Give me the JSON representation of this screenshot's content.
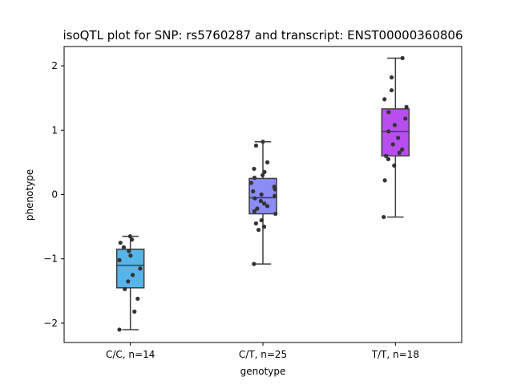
{
  "chart_data": {
    "type": "box",
    "title": "isoQTL plot for SNP: rs5760287 and transcript: ENST00000360806",
    "xlabel": "genotype",
    "ylabel": "phenotype",
    "ylim": [
      -2.3,
      2.3
    ],
    "yticks": [
      -2,
      -1,
      0,
      1,
      2
    ],
    "ytick_labels": [
      "−2",
      "−1",
      "0",
      "1",
      "2"
    ],
    "categories": [
      "C/C, n=14",
      "C/T, n=25",
      "T/T, n=18"
    ],
    "boxes": [
      {
        "category": "C/C, n=14",
        "color": "#56b4e9",
        "whisker_low": -2.1,
        "q1": -1.45,
        "median": -1.1,
        "q3": -0.85,
        "whisker_high": -0.65
      },
      {
        "category": "C/T, n=25",
        "color": "#8c8cf7",
        "whisker_low": -1.08,
        "q1": -0.3,
        "median": -0.05,
        "q3": 0.25,
        "whisker_high": 0.82
      },
      {
        "category": "T/T, n=18",
        "color": "#b84ef0",
        "whisker_low": -0.35,
        "q1": 0.6,
        "median": 0.98,
        "q3": 1.33,
        "whisker_high": 2.12
      }
    ],
    "points": [
      [
        -0.65,
        -0.7,
        -0.75,
        -0.82,
        -0.88,
        -0.95,
        -1.02,
        -1.15,
        -1.25,
        -1.35,
        -1.47,
        -1.62,
        -1.82,
        -2.1
      ],
      [
        0.82,
        0.76,
        0.5,
        0.4,
        0.35,
        0.3,
        0.26,
        0.18,
        0.12,
        0.08,
        0.05,
        0.0,
        -0.02,
        -0.06,
        -0.1,
        -0.14,
        -0.18,
        -0.22,
        -0.26,
        -0.3,
        -0.4,
        -0.45,
        -0.5,
        -0.55,
        -1.08
      ],
      [
        2.12,
        1.82,
        1.62,
        1.48,
        1.36,
        1.28,
        1.18,
        1.08,
        0.98,
        0.88,
        0.78,
        0.7,
        0.65,
        0.6,
        0.55,
        0.45,
        0.22,
        -0.35
      ]
    ],
    "grid": false,
    "legend": "none"
  }
}
